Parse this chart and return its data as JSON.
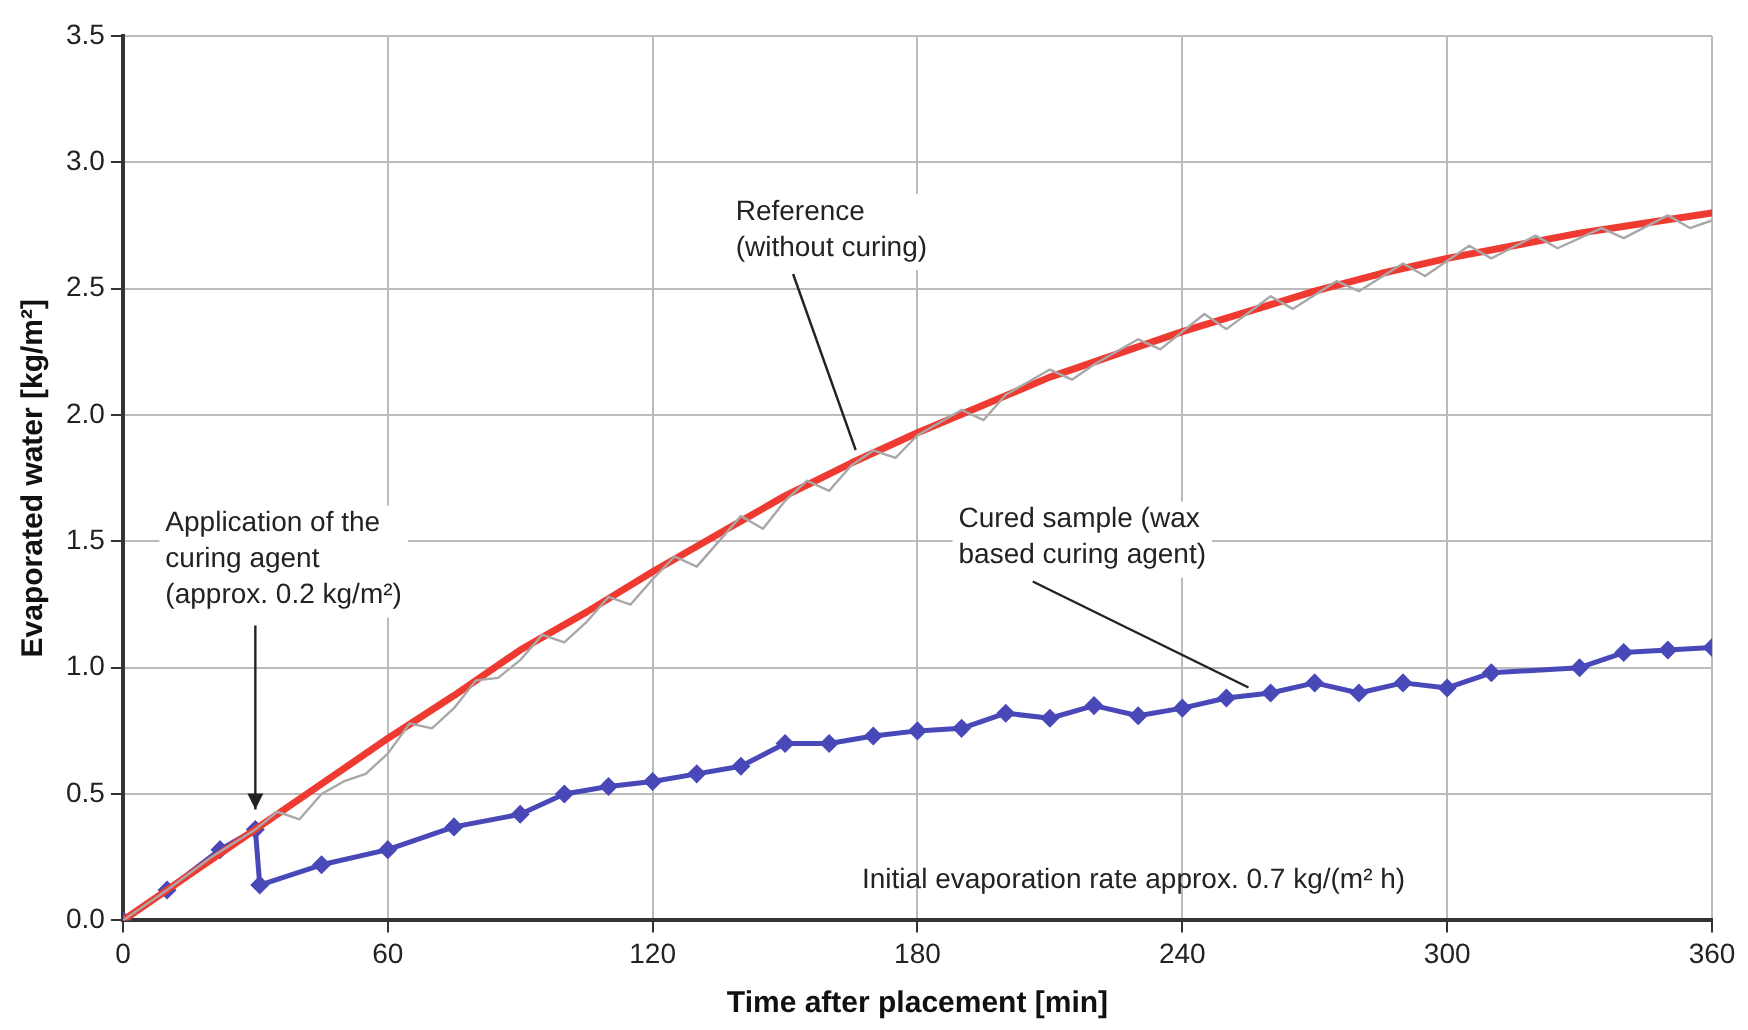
{
  "chart_data": {
    "type": "line",
    "xlabel": "Time after placement [min]",
    "ylabel": "Evaporated water [kg/m²]",
    "xlim": [
      0,
      360
    ],
    "xticks": [
      0,
      60,
      120,
      180,
      240,
      300,
      360
    ],
    "ylim": [
      0,
      3.5
    ],
    "yticks": [
      {
        "value": 0,
        "label": "0.0"
      },
      {
        "value": 0.5,
        "label": "0.5"
      },
      {
        "value": 1,
        "label": "1.0"
      },
      {
        "value": 1.5,
        "label": "1.5"
      },
      {
        "value": 2,
        "label": "2.0"
      },
      {
        "value": 2.5,
        "label": "2.5"
      },
      {
        "value": 3,
        "label": "3.0"
      },
      {
        "value": 3.5,
        "label": "3.5"
      }
    ],
    "grid": true,
    "legend": false,
    "series": [
      {
        "color": "#a8a8a8",
        "marker": "none",
        "x": [
          0,
          10,
          20,
          30,
          35,
          40,
          45,
          50,
          55,
          60,
          65,
          70,
          75,
          80,
          85,
          90,
          95,
          100,
          105,
          110,
          115,
          120,
          125,
          130,
          135,
          140,
          145,
          150,
          155,
          160,
          165,
          170,
          175,
          180,
          190,
          195,
          200,
          210,
          215,
          220,
          230,
          235,
          245,
          250,
          260,
          265,
          275,
          280,
          290,
          295,
          305,
          310,
          320,
          325,
          335,
          340,
          350,
          355,
          360
        ],
        "values": [
          0,
          0.12,
          0.25,
          0.36,
          0.43,
          0.4,
          0.5,
          0.55,
          0.58,
          0.66,
          0.78,
          0.76,
          0.84,
          0.95,
          0.96,
          1.03,
          1.13,
          1.1,
          1.18,
          1.28,
          1.25,
          1.35,
          1.44,
          1.4,
          1.5,
          1.6,
          1.55,
          1.66,
          1.74,
          1.7,
          1.8,
          1.86,
          1.83,
          1.92,
          2.02,
          1.98,
          2.08,
          2.18,
          2.14,
          2.2,
          2.3,
          2.26,
          2.4,
          2.34,
          2.47,
          2.42,
          2.53,
          2.49,
          2.6,
          2.55,
          2.67,
          2.62,
          2.71,
          2.66,
          2.74,
          2.7,
          2.79,
          2.74,
          2.77
        ]
      },
      {
        "color": "#ee3a30",
        "marker": "none",
        "x": [
          0,
          15,
          30,
          45,
          60,
          75,
          90,
          105,
          120,
          135,
          150,
          165,
          180,
          195,
          210,
          225,
          240,
          255,
          270,
          285,
          300,
          315,
          330,
          345,
          360
        ],
        "values": [
          0,
          0.18,
          0.36,
          0.54,
          0.72,
          0.89,
          1.07,
          1.22,
          1.38,
          1.53,
          1.68,
          1.81,
          1.93,
          2.04,
          2.15,
          2.24,
          2.33,
          2.41,
          2.49,
          2.56,
          2.62,
          2.67,
          2.72,
          2.76,
          2.8
        ]
      },
      {
        "color": "#4848b8",
        "marker": "diamond",
        "x": [
          0,
          10,
          22,
          30,
          31,
          45,
          60,
          75,
          90,
          100,
          110,
          120,
          130,
          140,
          150,
          160,
          170,
          180,
          190,
          200,
          210,
          220,
          230,
          240,
          250,
          260,
          270,
          280,
          290,
          300,
          310,
          330,
          340,
          350,
          360
        ],
        "values": [
          0,
          0.12,
          0.28,
          0.36,
          0.14,
          0.22,
          0.28,
          0.37,
          0.42,
          0.5,
          0.53,
          0.55,
          0.58,
          0.61,
          0.7,
          0.7,
          0.73,
          0.75,
          0.76,
          0.82,
          0.8,
          0.85,
          0.81,
          0.84,
          0.88,
          0.9,
          0.94,
          0.9,
          0.94,
          0.92,
          0.98,
          1.0,
          1.06,
          1.07,
          1.08
        ]
      }
    ],
    "annotations": [
      {
        "text": "Reference\n(without curing)",
        "x": 166,
        "y": 1.83
      },
      {
        "text": "Cured sample (wax\nbased curing agent)",
        "x": 255,
        "y": 0.89
      },
      "Application of the\ncuring agent\n(approx. 0.2 kg/m²)",
      "Initial evaporation rate approx. 0.7 kg/(m² h)"
    ]
  }
}
